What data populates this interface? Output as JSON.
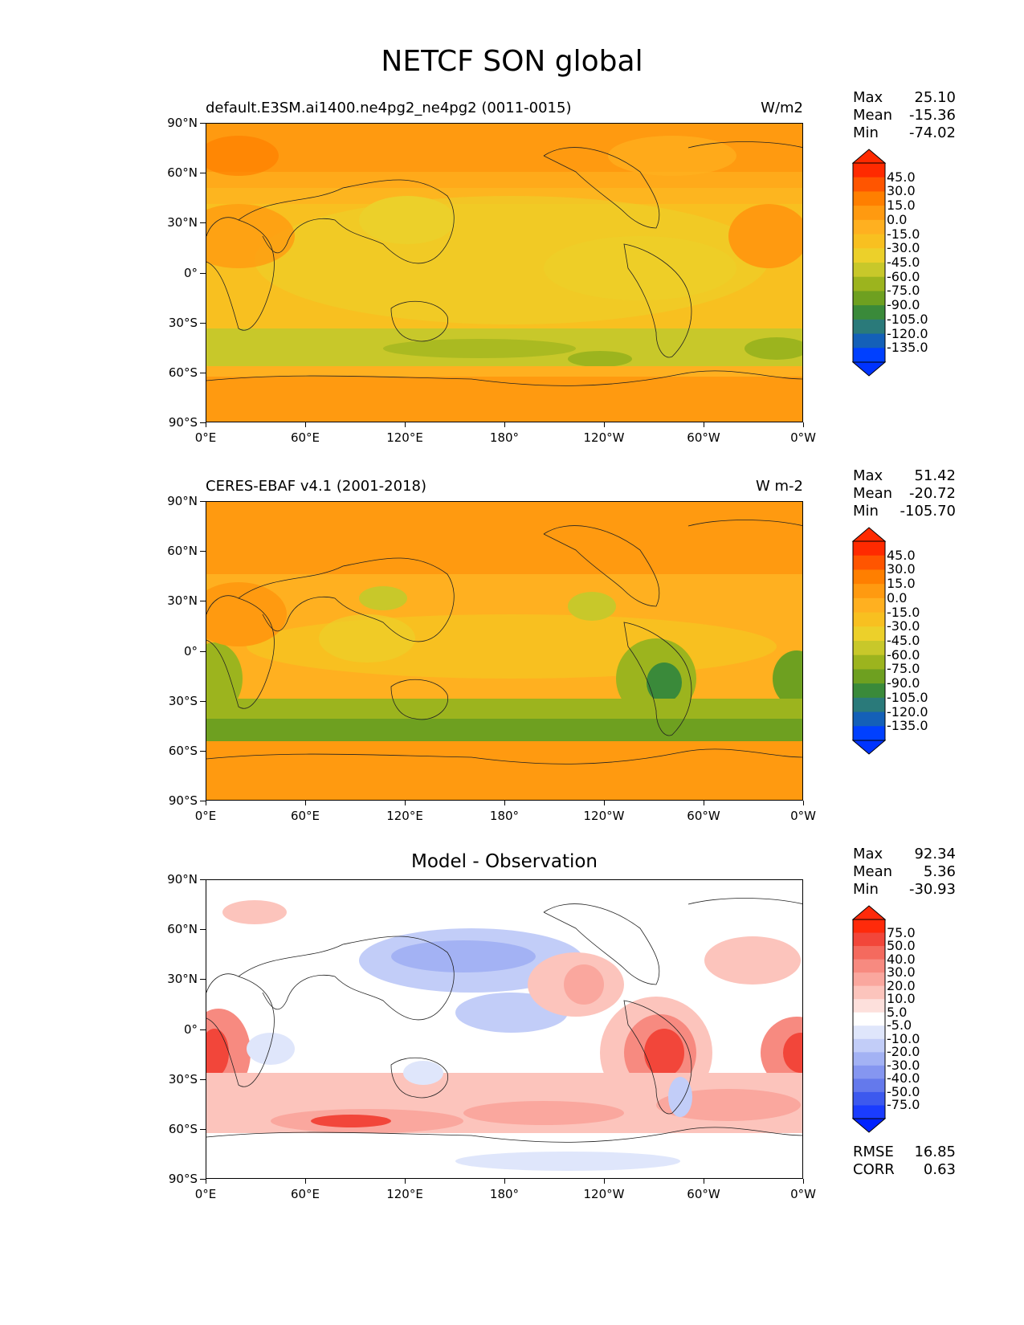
{
  "figure_title": "NETCF SON global",
  "x_ticks": [
    "0°E",
    "60°E",
    "120°E",
    "180°",
    "120°W",
    "60°W",
    "0°W"
  ],
  "y_ticks": [
    "90°N",
    "60°N",
    "30°N",
    "0°",
    "30°S",
    "60°S",
    "90°S"
  ],
  "panels": [
    {
      "title_left": "default.E3SM.ai1400.ne4pg2_ne4pg2 (0011-0015)",
      "title_right": "W/m2",
      "title_center": "",
      "stats": [
        {
          "label": "Max",
          "value": "25.10"
        },
        {
          "label": "Mean",
          "value": "-15.36"
        },
        {
          "label": "Min",
          "value": "-74.02"
        }
      ],
      "colorbar": {
        "labels": [
          "45.0",
          "30.0",
          "15.0",
          "0.0",
          "-15.0",
          "-30.0",
          "-45.0",
          "-60.0",
          "-75.0",
          "-90.0",
          "-105.0",
          "-120.0",
          "-135.0"
        ],
        "colors": [
          "#ff2a00",
          "#ff5500",
          "#ff7f00",
          "#ff9a10",
          "#ffb020",
          "#f8c020",
          "#ecd02a",
          "#c8c82a",
          "#9cb41e",
          "#6ea020",
          "#3a8a3a",
          "#2a7a7a",
          "#1460b8",
          "#0040ff"
        ],
        "over_color": "#ff2a00",
        "under_color": "#0033ff"
      },
      "extra_stats": []
    },
    {
      "title_left": "CERES-EBAF v4.1 (2001-2018)",
      "title_right": "W m-2",
      "title_center": "",
      "stats": [
        {
          "label": "Max",
          "value": "51.42"
        },
        {
          "label": "Mean",
          "value": "-20.72"
        },
        {
          "label": "Min",
          "value": "-105.70"
        }
      ],
      "colorbar": {
        "labels": [
          "45.0",
          "30.0",
          "15.0",
          "0.0",
          "-15.0",
          "-30.0",
          "-45.0",
          "-60.0",
          "-75.0",
          "-90.0",
          "-105.0",
          "-120.0",
          "-135.0"
        ],
        "colors": [
          "#ff2a00",
          "#ff5500",
          "#ff7f00",
          "#ff9a10",
          "#ffb020",
          "#f8c020",
          "#ecd02a",
          "#c8c82a",
          "#9cb41e",
          "#6ea020",
          "#3a8a3a",
          "#2a7a7a",
          "#1460b8",
          "#0040ff"
        ],
        "over_color": "#ff2a00",
        "under_color": "#0033ff"
      },
      "extra_stats": []
    },
    {
      "title_left": "",
      "title_right": "",
      "title_center": "Model - Observation",
      "stats": [
        {
          "label": "Max",
          "value": "92.34"
        },
        {
          "label": "Mean",
          "value": "5.36"
        },
        {
          "label": "Min",
          "value": "-30.93"
        }
      ],
      "colorbar": {
        "labels": [
          "75.0",
          "50.0",
          "40.0",
          "30.0",
          "20.0",
          "10.0",
          "5.0",
          "-5.0",
          "-10.0",
          "-20.0",
          "-30.0",
          "-40.0",
          "-50.0",
          "-75.0"
        ],
        "colors": [
          "#ff2a0a",
          "#f2463a",
          "#f46a5e",
          "#f78a80",
          "#faa79e",
          "#fcc4bc",
          "#fde0dc",
          "#ffffff",
          "#dfe6fb",
          "#c2cdf8",
          "#a3b2f4",
          "#8596f0",
          "#6479ec",
          "#3d59ee",
          "#1a3cff"
        ],
        "over_color": "#ff2a0a",
        "under_color": "#0022ff"
      },
      "extra_stats": [
        {
          "label": "RMSE",
          "value": "16.85"
        },
        {
          "label": "CORR",
          "value": "0.63"
        }
      ]
    }
  ]
}
